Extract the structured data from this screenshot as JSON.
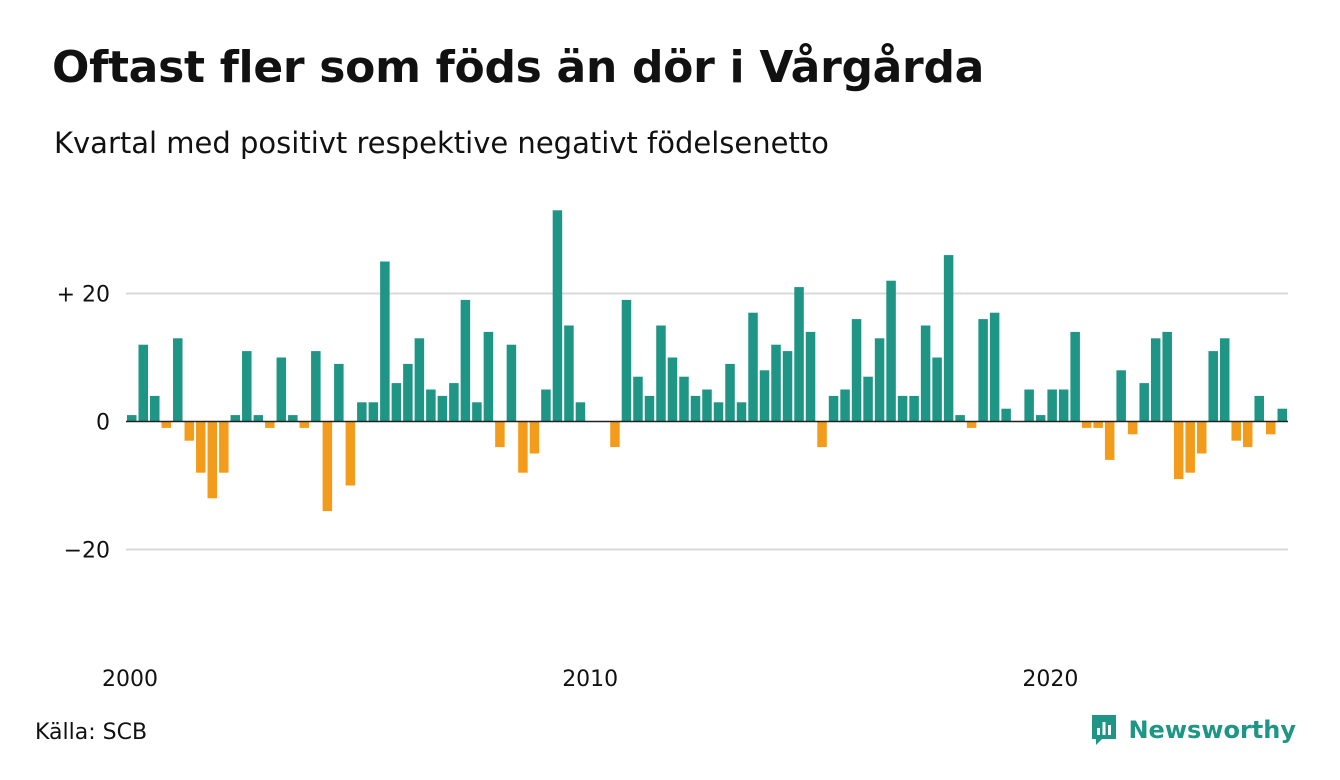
{
  "title": "Oftast fler som föds än dör i Vårgårda",
  "subtitle": "Kvartal med positivt respektive negativt födelsenetto",
  "source": "Källa: SCB",
  "brand": {
    "name": "Newsworthy",
    "icon": "newsworthy-logo-icon",
    "color": "#1e9585"
  },
  "chart_data": {
    "type": "bar",
    "colors": {
      "positive": "#1e9585",
      "negative": "#f39c1b",
      "grid": "#d9d9d9",
      "zero_line": "#222222"
    },
    "ylim": [
      -32,
      35
    ],
    "yticks": [
      {
        "value": 20,
        "label": "+ 20"
      },
      {
        "value": 0,
        "label": "0"
      },
      {
        "value": -20,
        "label": "−20"
      }
    ],
    "xticks": [
      {
        "value": 2000,
        "label": "2000"
      },
      {
        "value": 2010,
        "label": "2010"
      },
      {
        "value": 2020,
        "label": "2020"
      }
    ],
    "x_start": 2000,
    "periods_per_year": 4,
    "values": [
      1,
      12,
      4,
      -1,
      13,
      -3,
      -8,
      -12,
      -8,
      1,
      11,
      1,
      -1,
      10,
      1,
      -1,
      11,
      -14,
      9,
      -10,
      3,
      3,
      25,
      6,
      9,
      13,
      5,
      4,
      6,
      19,
      3,
      14,
      -4,
      12,
      -8,
      -5,
      5,
      33,
      15,
      3,
      0,
      0,
      -4,
      19,
      7,
      4,
      15,
      10,
      7,
      4,
      5,
      3,
      9,
      3,
      17,
      8,
      12,
      11,
      21,
      14,
      -4,
      4,
      5,
      16,
      7,
      13,
      22,
      4,
      4,
      15,
      10,
      26,
      1,
      -1,
      16,
      17,
      2,
      0,
      5,
      1,
      5,
      5,
      14,
      -1,
      -1,
      -6,
      8,
      -2,
      6,
      13,
      14,
      -9,
      -8,
      -5,
      11,
      13,
      -3,
      -4,
      4,
      -2,
      2
    ]
  }
}
